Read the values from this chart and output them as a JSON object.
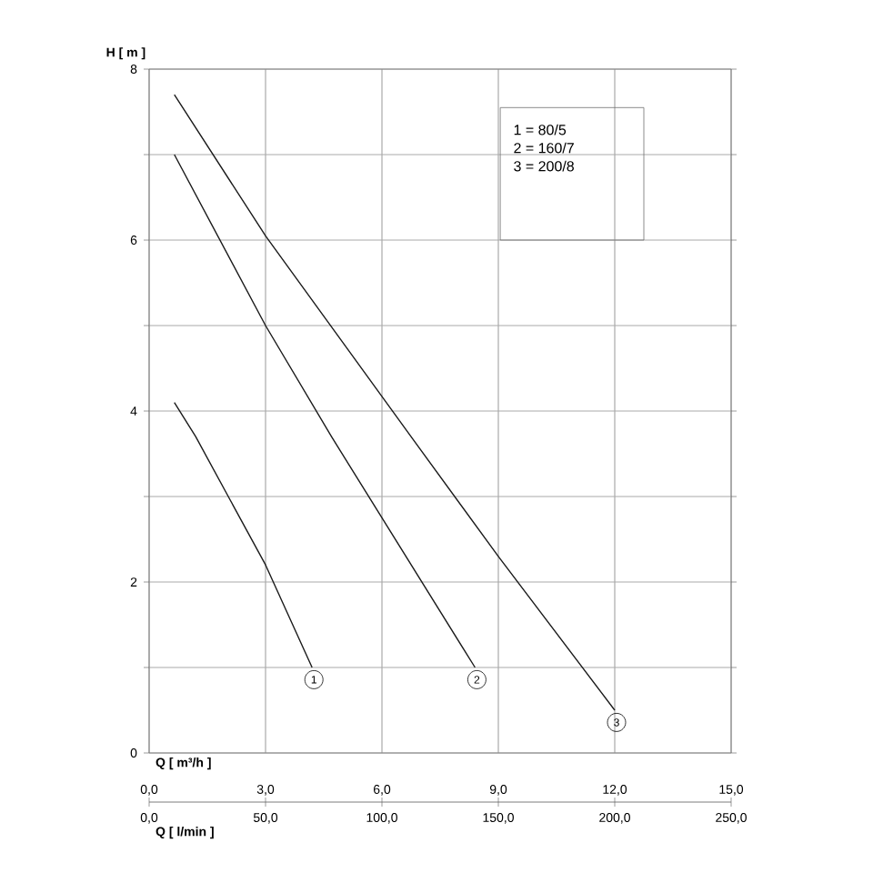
{
  "chart_data": {
    "type": "line",
    "xlabel": "Q [ m³/h ]",
    "ylabel": "H [ m ]",
    "x2label": "Q [ l/min ]",
    "xlim": [
      0,
      15
    ],
    "ylim": [
      0,
      8
    ],
    "x2lim": [
      0,
      250
    ],
    "xticks": [
      {
        "value": 0,
        "label": "0,0"
      },
      {
        "value": 3,
        "label": "3,0"
      },
      {
        "value": 6,
        "label": "6,0"
      },
      {
        "value": 9,
        "label": "9,0"
      },
      {
        "value": 12,
        "label": "12,0"
      },
      {
        "value": 15,
        "label": "15,0"
      }
    ],
    "x2ticks": [
      {
        "value": 0,
        "label": "0,0"
      },
      {
        "value": 50,
        "label": "50,0"
      },
      {
        "value": 100,
        "label": "100,0"
      },
      {
        "value": 150,
        "label": "150,0"
      },
      {
        "value": 200,
        "label": "200,0"
      },
      {
        "value": 250,
        "label": "250,0"
      }
    ],
    "yticks": [
      0,
      {
        "value": 1,
        "label": null
      },
      2,
      {
        "value": 3,
        "label": null
      },
      4,
      {
        "value": 5,
        "label": null
      },
      6,
      {
        "value": 7,
        "label": null
      },
      8
    ],
    "grid": true,
    "marker": "none",
    "line_style": "solid",
    "annotations": [
      "1 = 80/5",
      "2 = 160/7",
      "3 = 200/8"
    ],
    "series": [
      {
        "name": "1",
        "color": "#1a1a1a",
        "x": [
          0.65,
          1.2,
          3.0,
          4.2
        ],
        "values": [
          4.1,
          3.7,
          2.2,
          1.0
        ]
      },
      {
        "name": "2",
        "color": "#1a1a1a",
        "x": [
          0.65,
          3.0,
          4.7,
          8.4
        ],
        "values": [
          7.0,
          5.0,
          3.7,
          1.0
        ]
      },
      {
        "name": "3",
        "color": "#1a1a1a",
        "x": [
          0.65,
          3.0,
          6.75,
          9.0,
          12.0
        ],
        "values": [
          7.7,
          6.05,
          3.7,
          2.3,
          0.5
        ]
      }
    ]
  }
}
